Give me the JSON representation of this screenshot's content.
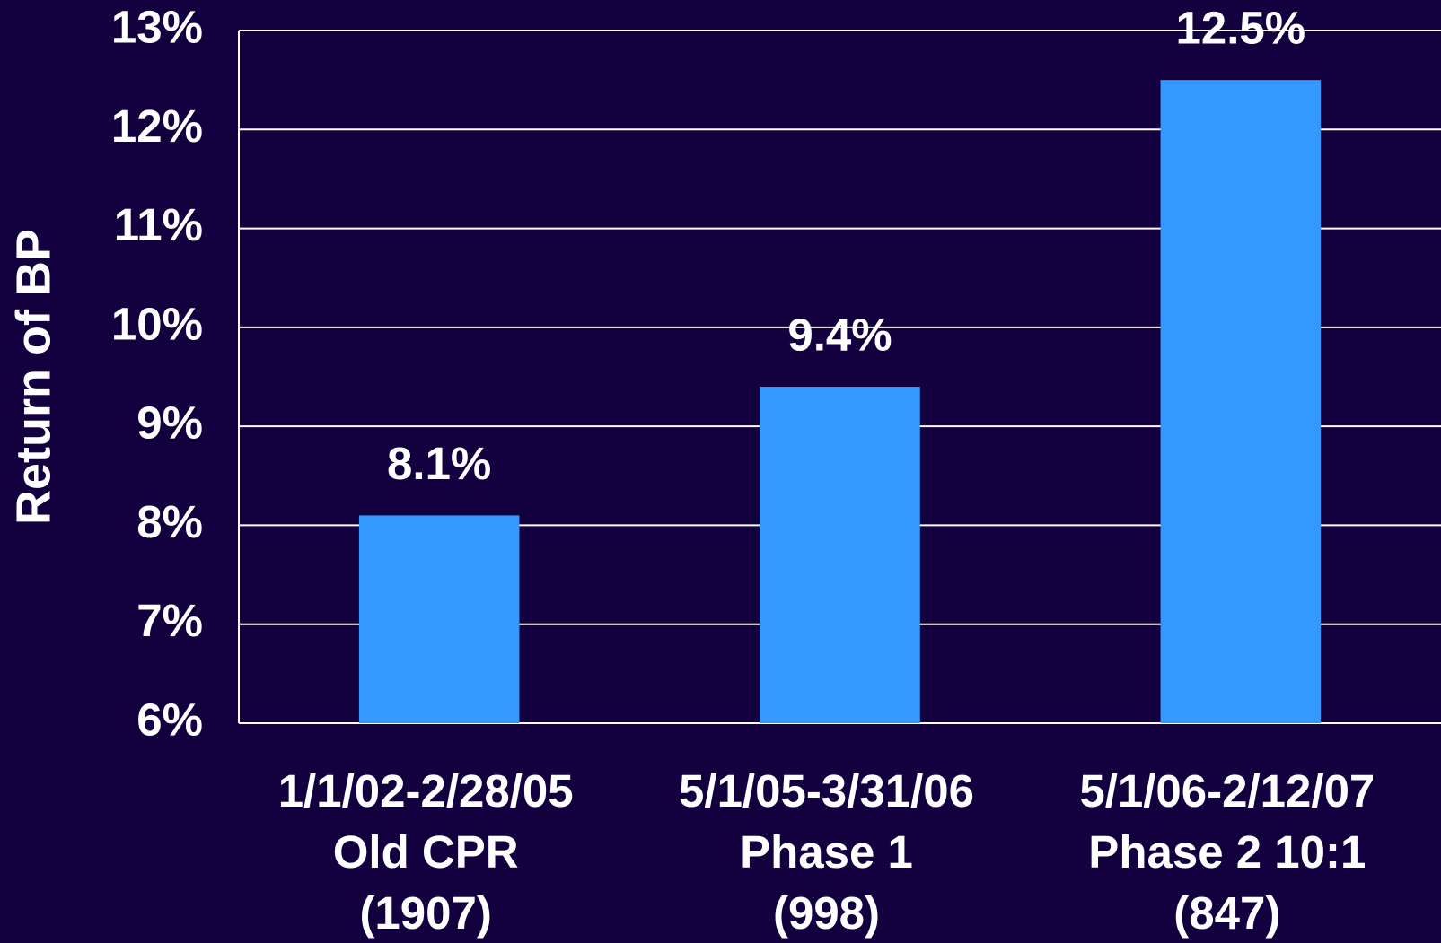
{
  "chart_data": {
    "type": "bar",
    "y_label": "Return of BP",
    "categories": [
      [
        "1/1/02-2/28/05",
        "Old CPR",
        "(1907)"
      ],
      [
        "5/1/05-3/31/06",
        "Phase 1",
        "(998)"
      ],
      [
        "5/1/06-2/12/07",
        "Phase 2 10:1",
        "(847)"
      ]
    ],
    "values": [
      8.1,
      9.4,
      12.5
    ],
    "value_labels": [
      "8.1%",
      "9.4%",
      "12.5%"
    ],
    "color": "#3399ff",
    "ylim": [
      6,
      13
    ],
    "yticks": [
      {
        "value": 6,
        "label": "6%"
      },
      {
        "value": 7,
        "label": "7%"
      },
      {
        "value": 8,
        "label": "8%"
      },
      {
        "value": 9,
        "label": "9%"
      },
      {
        "value": 10,
        "label": "10%"
      },
      {
        "value": 11,
        "label": "11%"
      },
      {
        "value": 12,
        "label": "12%"
      },
      {
        "value": 13,
        "label": "13%"
      }
    ],
    "grid": true
  }
}
